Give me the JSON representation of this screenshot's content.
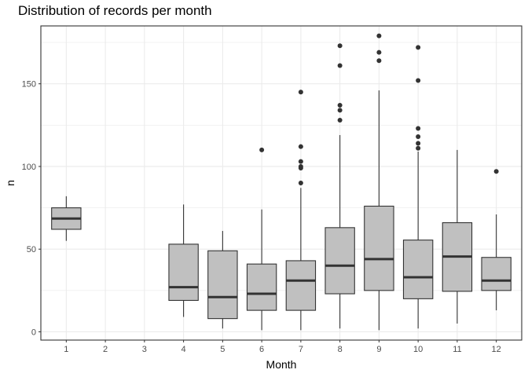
{
  "chart_data": {
    "type": "boxplot",
    "title": "Distribution of records per month",
    "xlabel": "Month",
    "ylabel": "n",
    "categories": [
      "1",
      "2",
      "3",
      "4",
      "5",
      "6",
      "7",
      "8",
      "9",
      "10",
      "11",
      "12"
    ],
    "ylim": [
      -5,
      185
    ],
    "yticks": [
      0,
      50,
      100,
      150
    ],
    "grid": true,
    "colors": {
      "box_fill": "#c0c0c0",
      "line": "#333333",
      "grid": "#ebebeb",
      "panel_border": "#333333"
    },
    "boxes": [
      {
        "category": "1",
        "min": 55,
        "q1": 62,
        "median": 68.5,
        "q3": 75,
        "max": 82,
        "outliers": []
      },
      {
        "category": "2",
        "min": null,
        "q1": null,
        "median": null,
        "q3": null,
        "max": null,
        "outliers": []
      },
      {
        "category": "3",
        "min": null,
        "q1": null,
        "median": null,
        "q3": null,
        "max": null,
        "outliers": []
      },
      {
        "category": "4",
        "min": 9,
        "q1": 19,
        "median": 27,
        "q3": 53,
        "max": 77,
        "outliers": []
      },
      {
        "category": "5",
        "min": 2,
        "q1": 8,
        "median": 21,
        "q3": 49,
        "max": 61,
        "outliers": []
      },
      {
        "category": "6",
        "min": 1,
        "q1": 13,
        "median": 23,
        "q3": 41,
        "max": 74,
        "outliers": [
          110
        ]
      },
      {
        "category": "7",
        "min": 1,
        "q1": 13,
        "median": 31,
        "q3": 43,
        "max": 87,
        "outliers": [
          90,
          99,
          100,
          103,
          112,
          145
        ]
      },
      {
        "category": "8",
        "min": 2,
        "q1": 23,
        "median": 40,
        "q3": 63,
        "max": 119,
        "outliers": [
          128,
          134,
          137,
          161,
          173
        ]
      },
      {
        "category": "9",
        "min": 1,
        "q1": 25,
        "median": 44,
        "q3": 76,
        "max": 146,
        "outliers": [
          164,
          169,
          179
        ]
      },
      {
        "category": "10",
        "min": 2,
        "q1": 20,
        "median": 33,
        "q3": 55.5,
        "max": 109,
        "outliers": [
          111,
          114,
          118,
          123,
          152,
          172
        ]
      },
      {
        "category": "11",
        "min": 5,
        "q1": 24.5,
        "median": 45.5,
        "q3": 66,
        "max": 110,
        "outliers": []
      },
      {
        "category": "12",
        "min": 13,
        "q1": 25,
        "median": 31,
        "q3": 45,
        "max": 71,
        "outliers": [
          97
        ]
      }
    ]
  }
}
